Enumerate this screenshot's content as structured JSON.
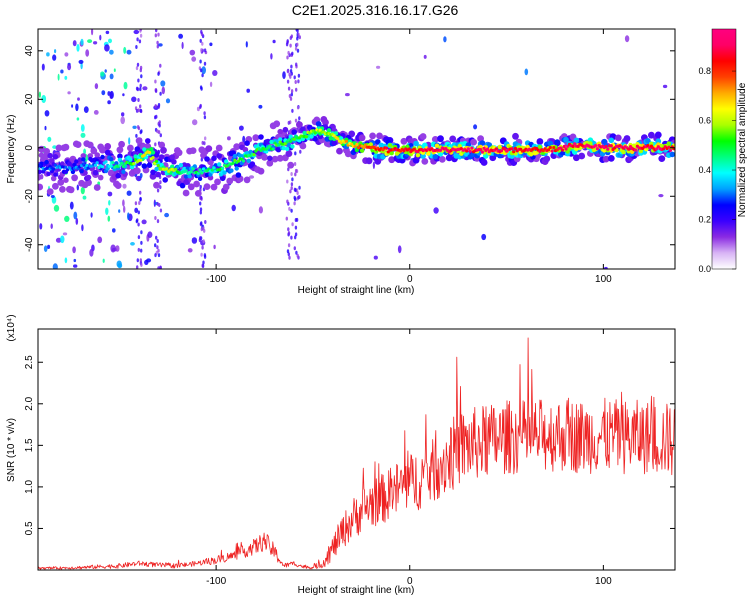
{
  "title": "C2E1.2025.316.16.17.G26",
  "chart_data": [
    {
      "type": "heatmap",
      "xlabel": "Height of straight line (km)",
      "ylabel": "Frequency (Hz)",
      "xlim": [
        -192,
        137
      ],
      "ylim": [
        -50,
        49
      ],
      "xticks": [
        -100,
        0,
        100
      ],
      "xtick_labels": [
        "-100",
        "0",
        "100"
      ],
      "yticks": [
        -40,
        -20,
        0,
        20,
        40
      ],
      "ytick_labels": [
        "-40",
        "-20",
        "0",
        "20",
        "40"
      ],
      "colorbar": {
        "label": "Normalized spectral amplitude",
        "range": [
          0,
          0.97
        ],
        "ticks": [
          0.0,
          0.2,
          0.4,
          0.6,
          0.8
        ],
        "tick_labels": [
          "0.0",
          "0.2",
          "0.4",
          "0.6",
          "0.8"
        ],
        "colormap": [
          "#ffffff",
          "#d8b4f5",
          "#8a2be2",
          "#3a00ff",
          "#0000ff",
          "#00a0ff",
          "#00ffff",
          "#00ff80",
          "#00ff00",
          "#aaff00",
          "#ffff00",
          "#ffaa00",
          "#ff4000",
          "#ff0000",
          "#ff0066",
          "#ff0080"
        ]
      },
      "ridge_track": {
        "x": [
          -192,
          -175,
          -160,
          -150,
          -143,
          -140,
          -135,
          -130,
          -125,
          -118,
          -110,
          -100,
          -92,
          -85,
          -78,
          -70,
          -62,
          -55,
          -48,
          -42,
          -36,
          -30,
          -20,
          -10,
          0,
          10,
          20,
          30,
          40,
          50,
          60,
          70,
          80,
          85,
          90,
          100,
          110,
          120,
          130,
          137
        ],
        "y": [
          -8,
          -8,
          -7,
          -7,
          -6,
          -5,
          -2,
          -8,
          -9,
          -10,
          -10,
          -9,
          -7,
          -4,
          -1,
          1,
          3,
          5,
          7,
          6,
          3,
          1,
          0,
          -1,
          -1,
          -1,
          -1,
          -1,
          -1,
          -1,
          -1,
          -1,
          0,
          1,
          1,
          0,
          0,
          0,
          0,
          0
        ],
        "amplitude": [
          0.3,
          0.3,
          0.35,
          0.45,
          0.55,
          0.6,
          0.65,
          0.55,
          0.6,
          0.5,
          0.45,
          0.45,
          0.5,
          0.5,
          0.5,
          0.5,
          0.5,
          0.55,
          0.6,
          0.6,
          0.65,
          0.7,
          0.8,
          0.85,
          0.85,
          0.9,
          0.9,
          0.9,
          0.9,
          0.9,
          0.85,
          0.85,
          0.85,
          0.9,
          0.9,
          0.9,
          0.9,
          0.9,
          0.9,
          0.85
        ]
      }
    },
    {
      "type": "line",
      "xlabel": "Height of straight line (km)",
      "ylabel": "SNR (10 * v/v)",
      "y_multiplier": "(x10⁴)",
      "xlim": [
        -192,
        137
      ],
      "ylim": [
        0,
        2.9
      ],
      "xticks": [
        -100,
        0,
        100
      ],
      "xtick_labels": [
        "-100",
        "0",
        "100"
      ],
      "yticks": [
        0.5,
        1.0,
        1.5,
        2.0,
        2.5
      ],
      "ytick_labels": [
        "0.5",
        "1.0",
        "1.5",
        "2.0",
        "2.5"
      ],
      "line_color": "#ee2222",
      "series": [
        {
          "name": "SNR",
          "x": [
            -192,
            -170,
            -150,
            -140,
            -130,
            -120,
            -110,
            -100,
            -90,
            -80,
            -75,
            -70,
            -65,
            -60,
            -55,
            -50,
            -45,
            -40,
            -35,
            -30,
            -25,
            -20,
            -15,
            -10,
            -5,
            0,
            5,
            10,
            15,
            20,
            25,
            30,
            40,
            50,
            60,
            70,
            80,
            90,
            100,
            110,
            120,
            130,
            137
          ],
          "values": [
            0.02,
            0.03,
            0.05,
            0.08,
            0.06,
            0.05,
            0.08,
            0.12,
            0.18,
            0.28,
            0.35,
            0.22,
            0.05,
            0.08,
            0.04,
            0.03,
            0.08,
            0.25,
            0.45,
            0.6,
            0.72,
            0.8,
            0.85,
            0.9,
            1.0,
            1.05,
            1.1,
            1.15,
            1.25,
            1.35,
            1.45,
            1.5,
            1.55,
            1.6,
            1.6,
            1.62,
            1.63,
            1.6,
            1.62,
            1.6,
            1.6,
            1.58,
            1.55
          ],
          "noise": [
            0.01,
            0.02,
            0.03,
            0.03,
            0.03,
            0.03,
            0.03,
            0.05,
            0.06,
            0.1,
            0.12,
            0.1,
            0.03,
            0.03,
            0.02,
            0.02,
            0.06,
            0.15,
            0.2,
            0.25,
            0.28,
            0.3,
            0.3,
            0.32,
            0.35,
            0.35,
            0.38,
            0.38,
            0.4,
            0.45,
            0.45,
            0.45,
            0.45,
            0.45,
            0.45,
            0.45,
            0.45,
            0.45,
            0.45,
            0.45,
            0.45,
            0.45,
            0.45
          ]
        }
      ]
    }
  ]
}
